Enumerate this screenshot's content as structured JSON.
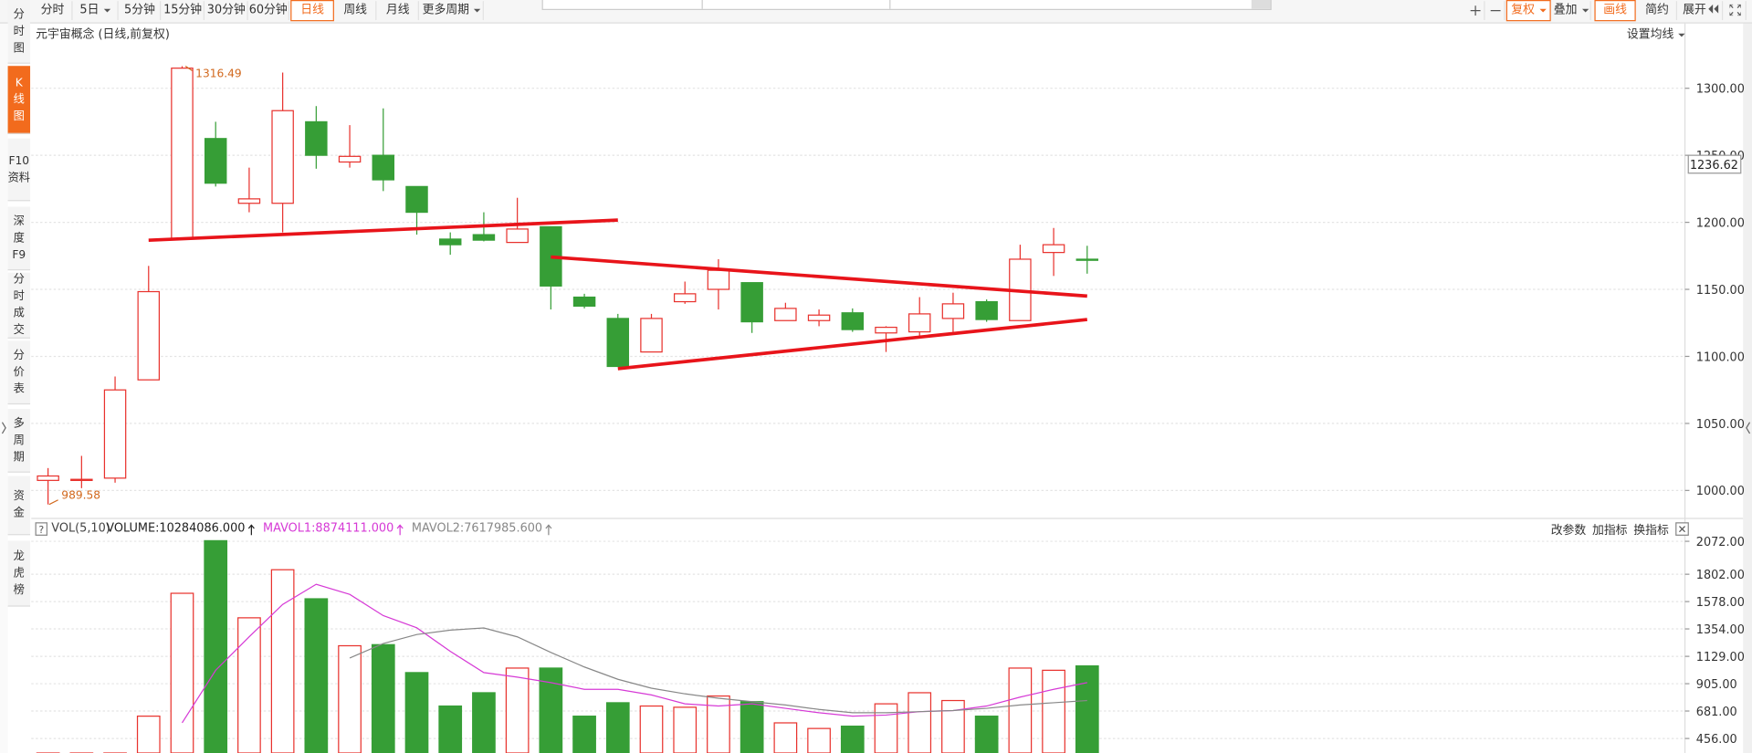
{
  "toolbar": {
    "periods": [
      "分时",
      "5日",
      "5分钟",
      "15分钟",
      "30分钟",
      "60分钟",
      "日线",
      "周线",
      "月线",
      "更多周期"
    ],
    "right_buttons": [
      "复权",
      "叠加",
      "画线",
      "简约",
      "展开"
    ]
  },
  "sidebar": [
    "分时图",
    "K线图",
    "F10资料",
    "深度F9",
    "分时成交",
    "分价表",
    "多周期",
    "资金",
    "龙虎榜"
  ],
  "panel_title": "元宇宙概念 (日线,前复权)",
  "ma_setting": "设置均线",
  "price_marker": "1236.62",
  "indicator": "VOL(5,10)",
  "indicator_help": "?",
  "indicator_buttons": [
    "改参数",
    "加指标",
    "换指标"
  ],
  "chart_data": [
    {
      "type": "candlestick",
      "up_color": "#e8322d",
      "down_color": "#369e36",
      "open": [
        1007.5,
        1007.5,
        1009.2,
        1082.5,
        1188,
        1262.5,
        1214.2,
        1214.2,
        1275,
        1245,
        1250,
        1226.7,
        1187.5,
        1190.8,
        1185,
        1196.7,
        1144.2,
        1128.3,
        1103.3,
        1140.8,
        1150,
        1155,
        1126.7,
        1126.7,
        1132.5,
        1117.5,
        1118.3,
        1128.3,
        1140.8,
        1126.7,
        1177.5,
        1172.5
      ],
      "high": [
        1016.7,
        1025.8,
        1085,
        1167.5,
        1316.49,
        1275,
        1240.8,
        1311.7,
        1286.7,
        1272.5,
        1285,
        1226.7,
        1192.5,
        1207.5,
        1218.3,
        1196.7,
        1146.7,
        1131.7,
        1131.7,
        1155.8,
        1172.5,
        1155,
        1140,
        1135,
        1135.8,
        1122.5,
        1144.2,
        1147.5,
        1142.5,
        1183.3,
        1195.8,
        1182.5
      ],
      "low": [
        989.58,
        1001.7,
        1005.8,
        1082.5,
        1188,
        1226.7,
        1207.5,
        1192.5,
        1240,
        1240.8,
        1223.3,
        1190.8,
        1175.8,
        1185.8,
        1185,
        1135,
        1135.8,
        1092.5,
        1103.3,
        1139.2,
        1135,
        1117.5,
        1126.7,
        1122.5,
        1118.3,
        1103.3,
        1113.3,
        1118.3,
        1125.8,
        1126.7,
        1160,
        1161.7
      ],
      "close": [
        1010.8,
        1008.3,
        1075,
        1148.3,
        1315,
        1229.2,
        1217.5,
        1283.3,
        1250,
        1249.2,
        1231.7,
        1207.5,
        1183.3,
        1186.7,
        1195,
        1152.5,
        1137.5,
        1092.5,
        1128.3,
        1146.7,
        1164.2,
        1125.8,
        1135.8,
        1130.8,
        1120,
        1121.7,
        1131.7,
        1139.2,
        1127.5,
        1172.5,
        1183.3,
        1171.7
      ],
      "annotations": [
        "1316.49",
        "989.58"
      ],
      "ylim": [
        980,
        1332.5
      ],
      "yticks": [
        {
          "value": 1300,
          "label": "1300.00"
        },
        {
          "value": 1250,
          "label": "1250.00"
        },
        {
          "value": 1200,
          "label": "1200.00"
        },
        {
          "value": 1150,
          "label": "1150.00"
        },
        {
          "value": 1100,
          "label": "1100.00"
        },
        {
          "value": 1050,
          "label": "1050.00"
        },
        {
          "value": 1000,
          "label": "1000.00"
        }
      ],
      "grid": true
    },
    {
      "type": "bar",
      "up_color": "#e8322d",
      "down_color": "#369e36",
      "series": [
        {
          "name": "VOLUME:10284086.000",
          "color": "#222222",
          "values": [
            300,
            280,
            330,
            639,
            1646,
            2077,
            1445,
            1839,
            1601,
            1216,
            1225,
            996,
            722,
            831,
            1033,
            1033,
            639,
            749,
            722,
            712,
            804,
            758,
            584,
            538,
            557,
            740,
            831,
            767,
            639,
            1033,
            1015,
            1051
          ]
        },
        {
          "name": "MAVOL1:8874111.000",
          "color": "#d63ad6",
          "values": [
            null,
            null,
            null,
            null,
            584,
            1015,
            1289,
            1555,
            1720,
            1637,
            1463,
            1363,
            1170,
            996,
            959,
            914,
            859,
            859,
            813,
            740,
            722,
            740,
            703,
            667,
            639,
            648,
            676,
            685,
            722,
            795,
            859,
            914
          ]
        },
        {
          "name": "MAVOL2:7617985.600",
          "color": "#888888",
          "values": [
            null,
            null,
            null,
            null,
            null,
            null,
            null,
            null,
            null,
            1115,
            1234,
            1308,
            1344,
            1362,
            1289,
            1161,
            1042,
            941,
            868,
            822,
            786,
            758,
            731,
            694,
            667,
            667,
            676,
            685,
            703,
            731,
            749,
            767
          ]
        }
      ],
      "ylim": [
        337,
        2095
      ],
      "yticks": [
        {
          "value": 2072,
          "label": "2072.00"
        },
        {
          "value": 1802,
          "label": "1802.00"
        },
        {
          "value": 1578,
          "label": "1578.00"
        },
        {
          "value": 1354,
          "label": "1354.00"
        },
        {
          "value": 1129,
          "label": "1129.00"
        },
        {
          "value": 905,
          "label": "905.00"
        },
        {
          "value": 681,
          "label": "681.00"
        },
        {
          "value": 456,
          "label": "456.00"
        }
      ],
      "grid": true
    }
  ]
}
